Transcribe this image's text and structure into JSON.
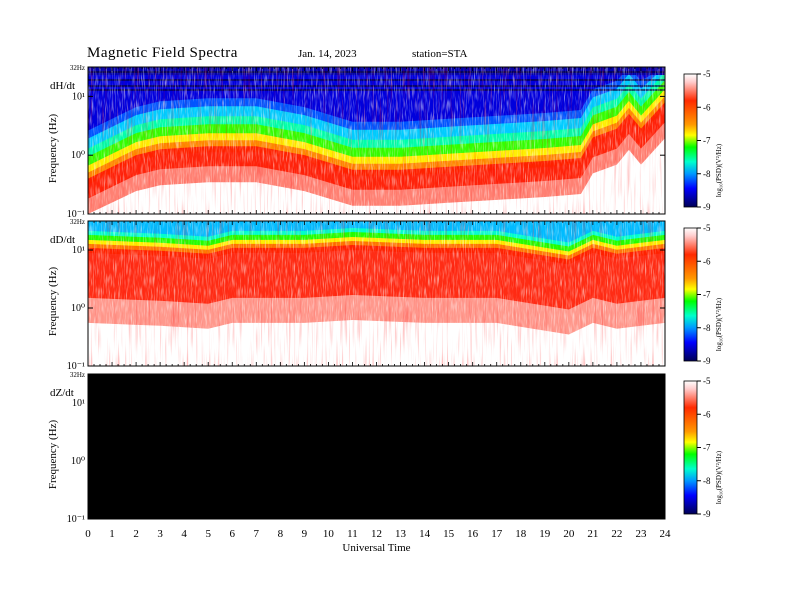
{
  "header": {
    "title": "Magnetic  Field  Spectra",
    "date": "Jan. 14, 2023",
    "station": "station=STA"
  },
  "chart_data": [
    {
      "type": "heatmap",
      "panel_label": "dH/dt",
      "ylabel": "Frequency  (Hz)",
      "yticks": [
        "32Hz",
        "10¹",
        "10⁰",
        "10⁻¹"
      ],
      "xlim": [
        0,
        24
      ],
      "ylim_log10": [
        -1,
        1.5
      ],
      "colorbar_label": "log₁₀(PSD)(V²/Hz)",
      "colorbar_ticks": [
        "-5",
        "-6",
        "-7",
        "-8",
        "-9"
      ],
      "colorbar_range": [
        -9,
        -5
      ],
      "description_profile": {
        "hours": [
          0,
          2,
          3,
          5,
          7,
          9,
          11,
          13,
          15,
          17,
          19,
          20.5,
          21,
          22,
          22.5,
          23,
          24
        ],
        "red_edge_log10_freq": [
          -0.5,
          -0.1,
          0.0,
          0.05,
          0.05,
          -0.1,
          -0.35,
          -0.35,
          -0.3,
          -0.25,
          -0.2,
          -0.15,
          0.2,
          0.35,
          0.6,
          0.35,
          0.8
        ]
      }
    },
    {
      "type": "heatmap",
      "panel_label": "dD/dt",
      "ylabel": "Frequency  (Hz)",
      "yticks": [
        "32Hz",
        "10¹",
        "10⁰",
        "10⁻¹"
      ],
      "xlim": [
        0,
        24
      ],
      "ylim_log10": [
        -1,
        1.5
      ],
      "colorbar_label": "log₁₀(PSD)(V²/Hz)",
      "colorbar_ticks": [
        "-5",
        "-6",
        "-7",
        "-8",
        "-9"
      ],
      "colorbar_range": [
        -9,
        -5
      ],
      "description_profile": {
        "hours": [
          0,
          3,
          5,
          6,
          9,
          11,
          14,
          17,
          20,
          21,
          22,
          24
        ],
        "red_edge_log10_freq": [
          0.95,
          0.9,
          0.85,
          0.95,
          0.95,
          1.0,
          0.95,
          0.95,
          0.75,
          0.95,
          0.85,
          0.95
        ]
      }
    },
    {
      "type": "heatmap",
      "panel_label": "dZ/dt",
      "ylabel": "Frequency  (Hz)",
      "yticks": [
        "32Hz",
        "10¹",
        "10⁰",
        "10⁻¹"
      ],
      "xlim": [
        0,
        24
      ],
      "ylim_log10": [
        -1,
        1.5
      ],
      "colorbar_label": "log₁₀(PSD)(V²/Hz)",
      "colorbar_ticks": [
        "-5",
        "-6",
        "-7",
        "-8",
        "-9"
      ],
      "colorbar_range": [
        -9,
        -5
      ],
      "fill": "#000000"
    }
  ],
  "xaxis": {
    "xlabel": "Universal Time",
    "ticks": [
      "0",
      "1",
      "2",
      "3",
      "4",
      "5",
      "6",
      "7",
      "8",
      "9",
      "10",
      "11",
      "12",
      "13",
      "14",
      "15",
      "16",
      "17",
      "18",
      "19",
      "20",
      "21",
      "22",
      "23",
      "24"
    ]
  },
  "colors": {
    "scale": [
      "#ffffff",
      "#ff0000",
      "#ffff00",
      "#00ff00",
      "#00ffff",
      "#0000ff",
      "#000040"
    ]
  }
}
